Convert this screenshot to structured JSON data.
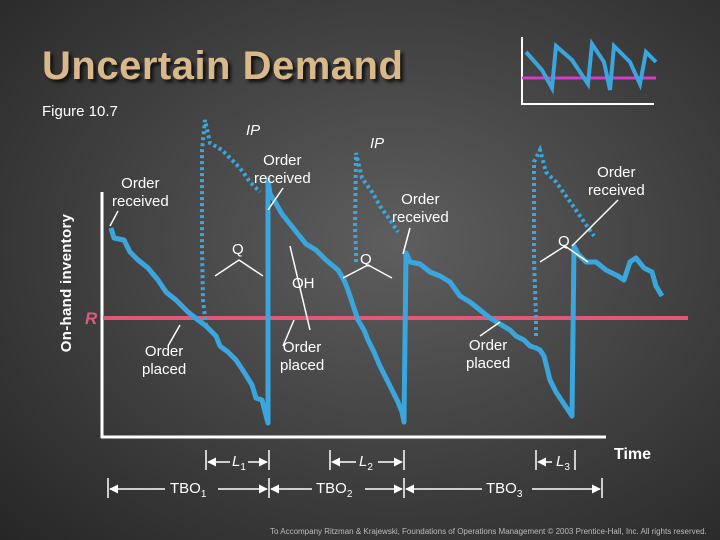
{
  "title": "Uncertain Demand",
  "figure_label": "Figure 10.7",
  "y_axis_label": "On-hand inventory",
  "x_axis_label": "Time",
  "ip_labels": [
    "IP",
    "IP"
  ],
  "order_received_labels": [
    "Order\nreceived",
    "Order\nreceived",
    "Order\nreceived",
    "Order\nreceived"
  ],
  "q_labels": [
    "Q",
    "Q",
    "Q"
  ],
  "oh_label": "OH",
  "r_label": "R",
  "order_placed_labels": [
    "Order\nplaced",
    "Order\nplaced",
    "Order\nplaced"
  ],
  "lead_time_labels": {
    "l1": "L",
    "l1_sub": "1",
    "l2": "L",
    "l2_sub": "2",
    "l3": "L",
    "l3_sub": "3"
  },
  "tbo_labels": {
    "tbo1": "TBO",
    "tbo1_sub": "1",
    "tbo2": "TBO",
    "tbo2_sub": "2",
    "tbo3": "TBO",
    "tbo3_sub": "3"
  },
  "footer": "To Accompany Ritzman & Krajewski, Foundations of Operations Management © 2003 Prentice-Hall, Inc. All rights reserved.",
  "colors": {
    "inventory_line": "#3aa6dd",
    "reorder_point": "#e05a78",
    "title": "#d9b98c"
  }
}
